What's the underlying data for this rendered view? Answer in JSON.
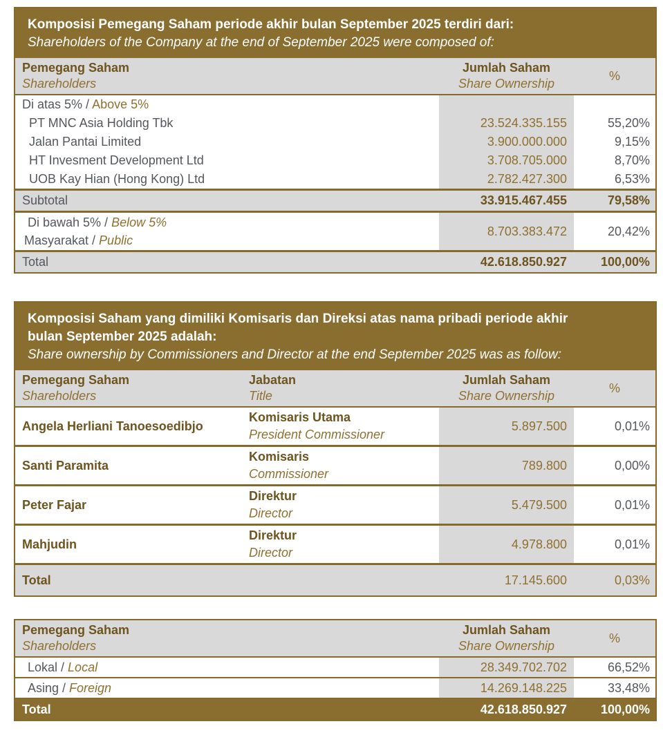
{
  "palette": {
    "band": "#8a6e30",
    "border": "#866a2c",
    "gray": "#d9d9d9",
    "gold_text": "#8f7030",
    "brown_text": "#6e541e",
    "body_text": "#54575c"
  },
  "table1": {
    "title_id": "Komposisi Pemegang Saham periode akhir bulan September 2025 terdiri dari:",
    "title_en": "Shareholders of the Company at the end of September 2025 were composed of:",
    "header": {
      "col1_id": "Pemegang Saham",
      "col1_en": "Shareholders",
      "col2_id": "Jumlah Saham",
      "col2_en": "Share Ownership",
      "col3": "%"
    },
    "group": {
      "id": "Di atas 5% / ",
      "en": "Above 5%"
    },
    "rows": [
      {
        "name": "PT MNC Asia Holding Tbk",
        "shares": "23.524.335.155",
        "pct": "55,20%"
      },
      {
        "name": "Jalan Pantai Limited",
        "shares": "3.900.000.000",
        "pct": "9,15%"
      },
      {
        "name": "HT Invesment Development Ltd",
        "shares": "3.708.705.000",
        "pct": "8,70%"
      },
      {
        "name": "UOB Kay Hian (Hong Kong) Ltd",
        "shares": "2.782.427.300",
        "pct": "6,53%"
      }
    ],
    "subtotal": {
      "label": "Subtotal",
      "shares": "33.915.467.455",
      "pct": "79,58%"
    },
    "below": {
      "line1_id": "Di bawah 5% / ",
      "line1_en": "Below 5%",
      "line2_id": "Masyarakat / ",
      "line2_en": "Public",
      "shares": "8.703.383.472",
      "pct": "20,42%"
    },
    "total": {
      "label": "Total",
      "shares": "42.618.850.927",
      "pct": "100,00%"
    }
  },
  "table2": {
    "title_id_line1": "Komposisi Saham yang dimiliki Komisaris dan Direksi atas nama pribadi periode akhir",
    "title_id_line2": "bulan September 2025 adalah:",
    "title_en": "Share ownership by Commissioners and Director at the end September 2025 was as follow:",
    "header": {
      "col1_id": "Pemegang Saham",
      "col1_en": "Shareholders",
      "col2_id": "Jabatan",
      "col2_en": "Title",
      "col3_id": "Jumlah Saham",
      "col3_en": "Share Ownership",
      "col4": "%"
    },
    "rows": [
      {
        "name": "Angela Herliani Tanoesoedibjo",
        "title_id": "Komisaris Utama",
        "title_en": "President Commissioner",
        "shares": "5.897.500",
        "pct": "0,01%"
      },
      {
        "name": "Santi Paramita",
        "title_id": "Komisaris",
        "title_en": "Commissioner",
        "shares": "789.800",
        "pct": "0,00%"
      },
      {
        "name": "Peter Fajar",
        "title_id": "Direktur",
        "title_en": "Director",
        "shares": "5.479.500",
        "pct": "0,01%"
      },
      {
        "name": "Mahjudin",
        "title_id": "Direktur",
        "title_en": "Director",
        "shares": "4.978.800",
        "pct": "0,01%"
      }
    ],
    "total": {
      "label": "Total",
      "shares": "17.145.600",
      "pct": "0,03%"
    }
  },
  "table3": {
    "header": {
      "col1_id": "Pemegang Saham",
      "col1_en": "Shareholders",
      "col2_id": "Jumlah Saham",
      "col2_en": "Share Ownership",
      "col3": "%"
    },
    "rows": [
      {
        "label_id": "Lokal / ",
        "label_en": "Local",
        "shares": "28.349.702.702",
        "pct": "66,52%"
      },
      {
        "label_id": "Asing / ",
        "label_en": "Foreign",
        "shares": "14.269.148.225",
        "pct": "33,48%"
      }
    ],
    "total": {
      "label": "Total",
      "shares": "42.618.850.927",
      "pct": "100,00%"
    }
  }
}
